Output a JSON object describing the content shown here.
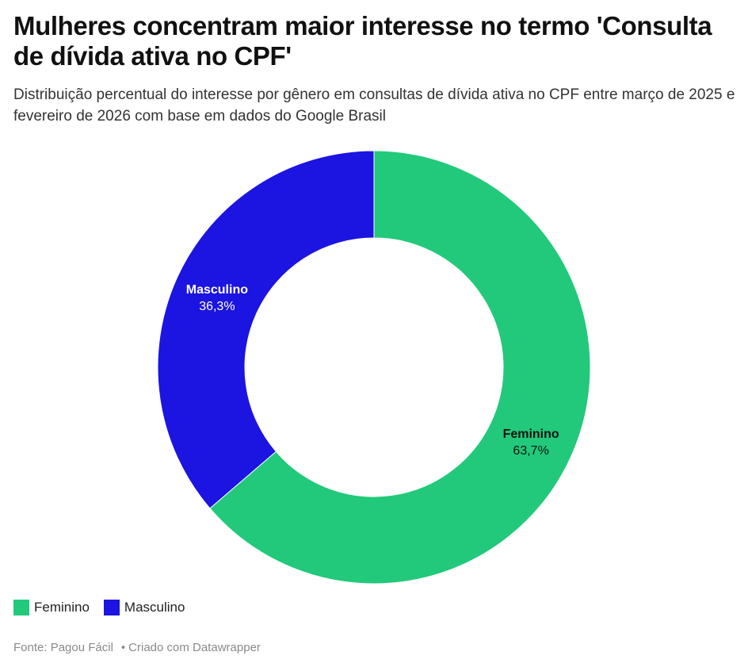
{
  "title": "Mulheres concentram maior interesse no termo 'Consulta de dívida ativa no CPF'",
  "subtitle": "Distribuição percentual do interesse por gênero em consultas de dívida ativa no CPF entre março de 2025 e fevereiro de 2026 com base em dados do Google Brasil",
  "footer": {
    "source": "Fonte: Pagou Fácil",
    "separator": "•",
    "credit": "Criado com Datawrapper"
  },
  "chart_data": {
    "type": "pie",
    "donut": true,
    "slices": [
      {
        "label": "Feminino",
        "value": 63.7,
        "display": "63,7%",
        "color": "#22c97a",
        "label_color": "#111111"
      },
      {
        "label": "Masculino",
        "value": 36.3,
        "display": "36,3%",
        "color": "#1c14e0",
        "label_color": "#ffffff"
      }
    ],
    "legend_placement": "bottom-left"
  }
}
